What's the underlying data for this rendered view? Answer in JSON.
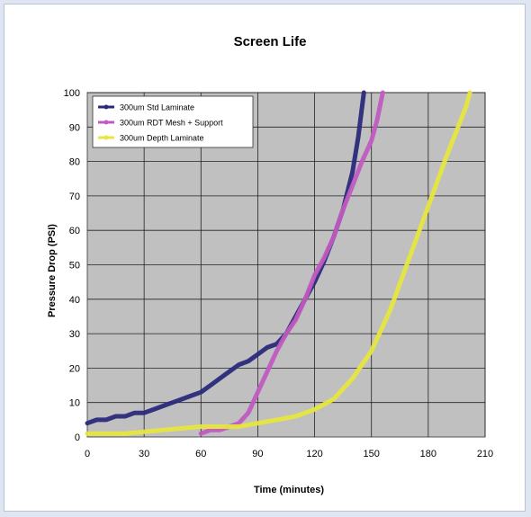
{
  "chart_data": {
    "type": "line",
    "title": "Screen Life",
    "xlabel": "Time (minutes)",
    "ylabel": "Pressure Drop (PSI)",
    "xlim": [
      0,
      210
    ],
    "ylim": [
      0,
      100
    ],
    "x_ticks": [
      "0",
      "30",
      "60",
      "90",
      "120",
      "150",
      "180",
      "210"
    ],
    "y_ticks": [
      "0",
      "10",
      "20",
      "30",
      "40",
      "50",
      "60",
      "70",
      "80",
      "90",
      "100"
    ],
    "grid": true,
    "legend_position": "top-left",
    "plot_background": "#c0c0c0",
    "series": [
      {
        "name": "300um Std Laminate",
        "color": "#2a2a7a",
        "points": [
          [
            0,
            4
          ],
          [
            5,
            5
          ],
          [
            10,
            5
          ],
          [
            15,
            6
          ],
          [
            20,
            6
          ],
          [
            25,
            7
          ],
          [
            30,
            7
          ],
          [
            35,
            8
          ],
          [
            40,
            9
          ],
          [
            45,
            10
          ],
          [
            50,
            11
          ],
          [
            55,
            12
          ],
          [
            60,
            13
          ],
          [
            65,
            15
          ],
          [
            70,
            17
          ],
          [
            75,
            19
          ],
          [
            80,
            21
          ],
          [
            85,
            22
          ],
          [
            90,
            24
          ],
          [
            95,
            26
          ],
          [
            100,
            27
          ],
          [
            105,
            30
          ],
          [
            110,
            35
          ],
          [
            115,
            40
          ],
          [
            120,
            45
          ],
          [
            125,
            51
          ],
          [
            130,
            58
          ],
          [
            135,
            66
          ],
          [
            140,
            77
          ],
          [
            143,
            87
          ],
          [
            146,
            100
          ]
        ]
      },
      {
        "name": "300um RDT Mesh + Support",
        "color": "#c05bc0",
        "points": [
          [
            60,
            1
          ],
          [
            65,
            2
          ],
          [
            70,
            2
          ],
          [
            75,
            3
          ],
          [
            80,
            4
          ],
          [
            85,
            7
          ],
          [
            90,
            13
          ],
          [
            95,
            19
          ],
          [
            100,
            25
          ],
          [
            105,
            30
          ],
          [
            110,
            34
          ],
          [
            115,
            40
          ],
          [
            120,
            47
          ],
          [
            125,
            52
          ],
          [
            130,
            58
          ],
          [
            135,
            66
          ],
          [
            140,
            73
          ],
          [
            145,
            80
          ],
          [
            150,
            86
          ],
          [
            153,
            92
          ],
          [
            156,
            100
          ]
        ]
      },
      {
        "name": "300um Depth Laminate",
        "color": "#e6e640",
        "points": [
          [
            0,
            1
          ],
          [
            20,
            1
          ],
          [
            40,
            2
          ],
          [
            60,
            3
          ],
          [
            80,
            3
          ],
          [
            100,
            5
          ],
          [
            110,
            6
          ],
          [
            120,
            8
          ],
          [
            130,
            11
          ],
          [
            140,
            17
          ],
          [
            150,
            25
          ],
          [
            160,
            37
          ],
          [
            170,
            52
          ],
          [
            180,
            67
          ],
          [
            190,
            82
          ],
          [
            200,
            96
          ],
          [
            202,
            100
          ]
        ]
      }
    ]
  }
}
